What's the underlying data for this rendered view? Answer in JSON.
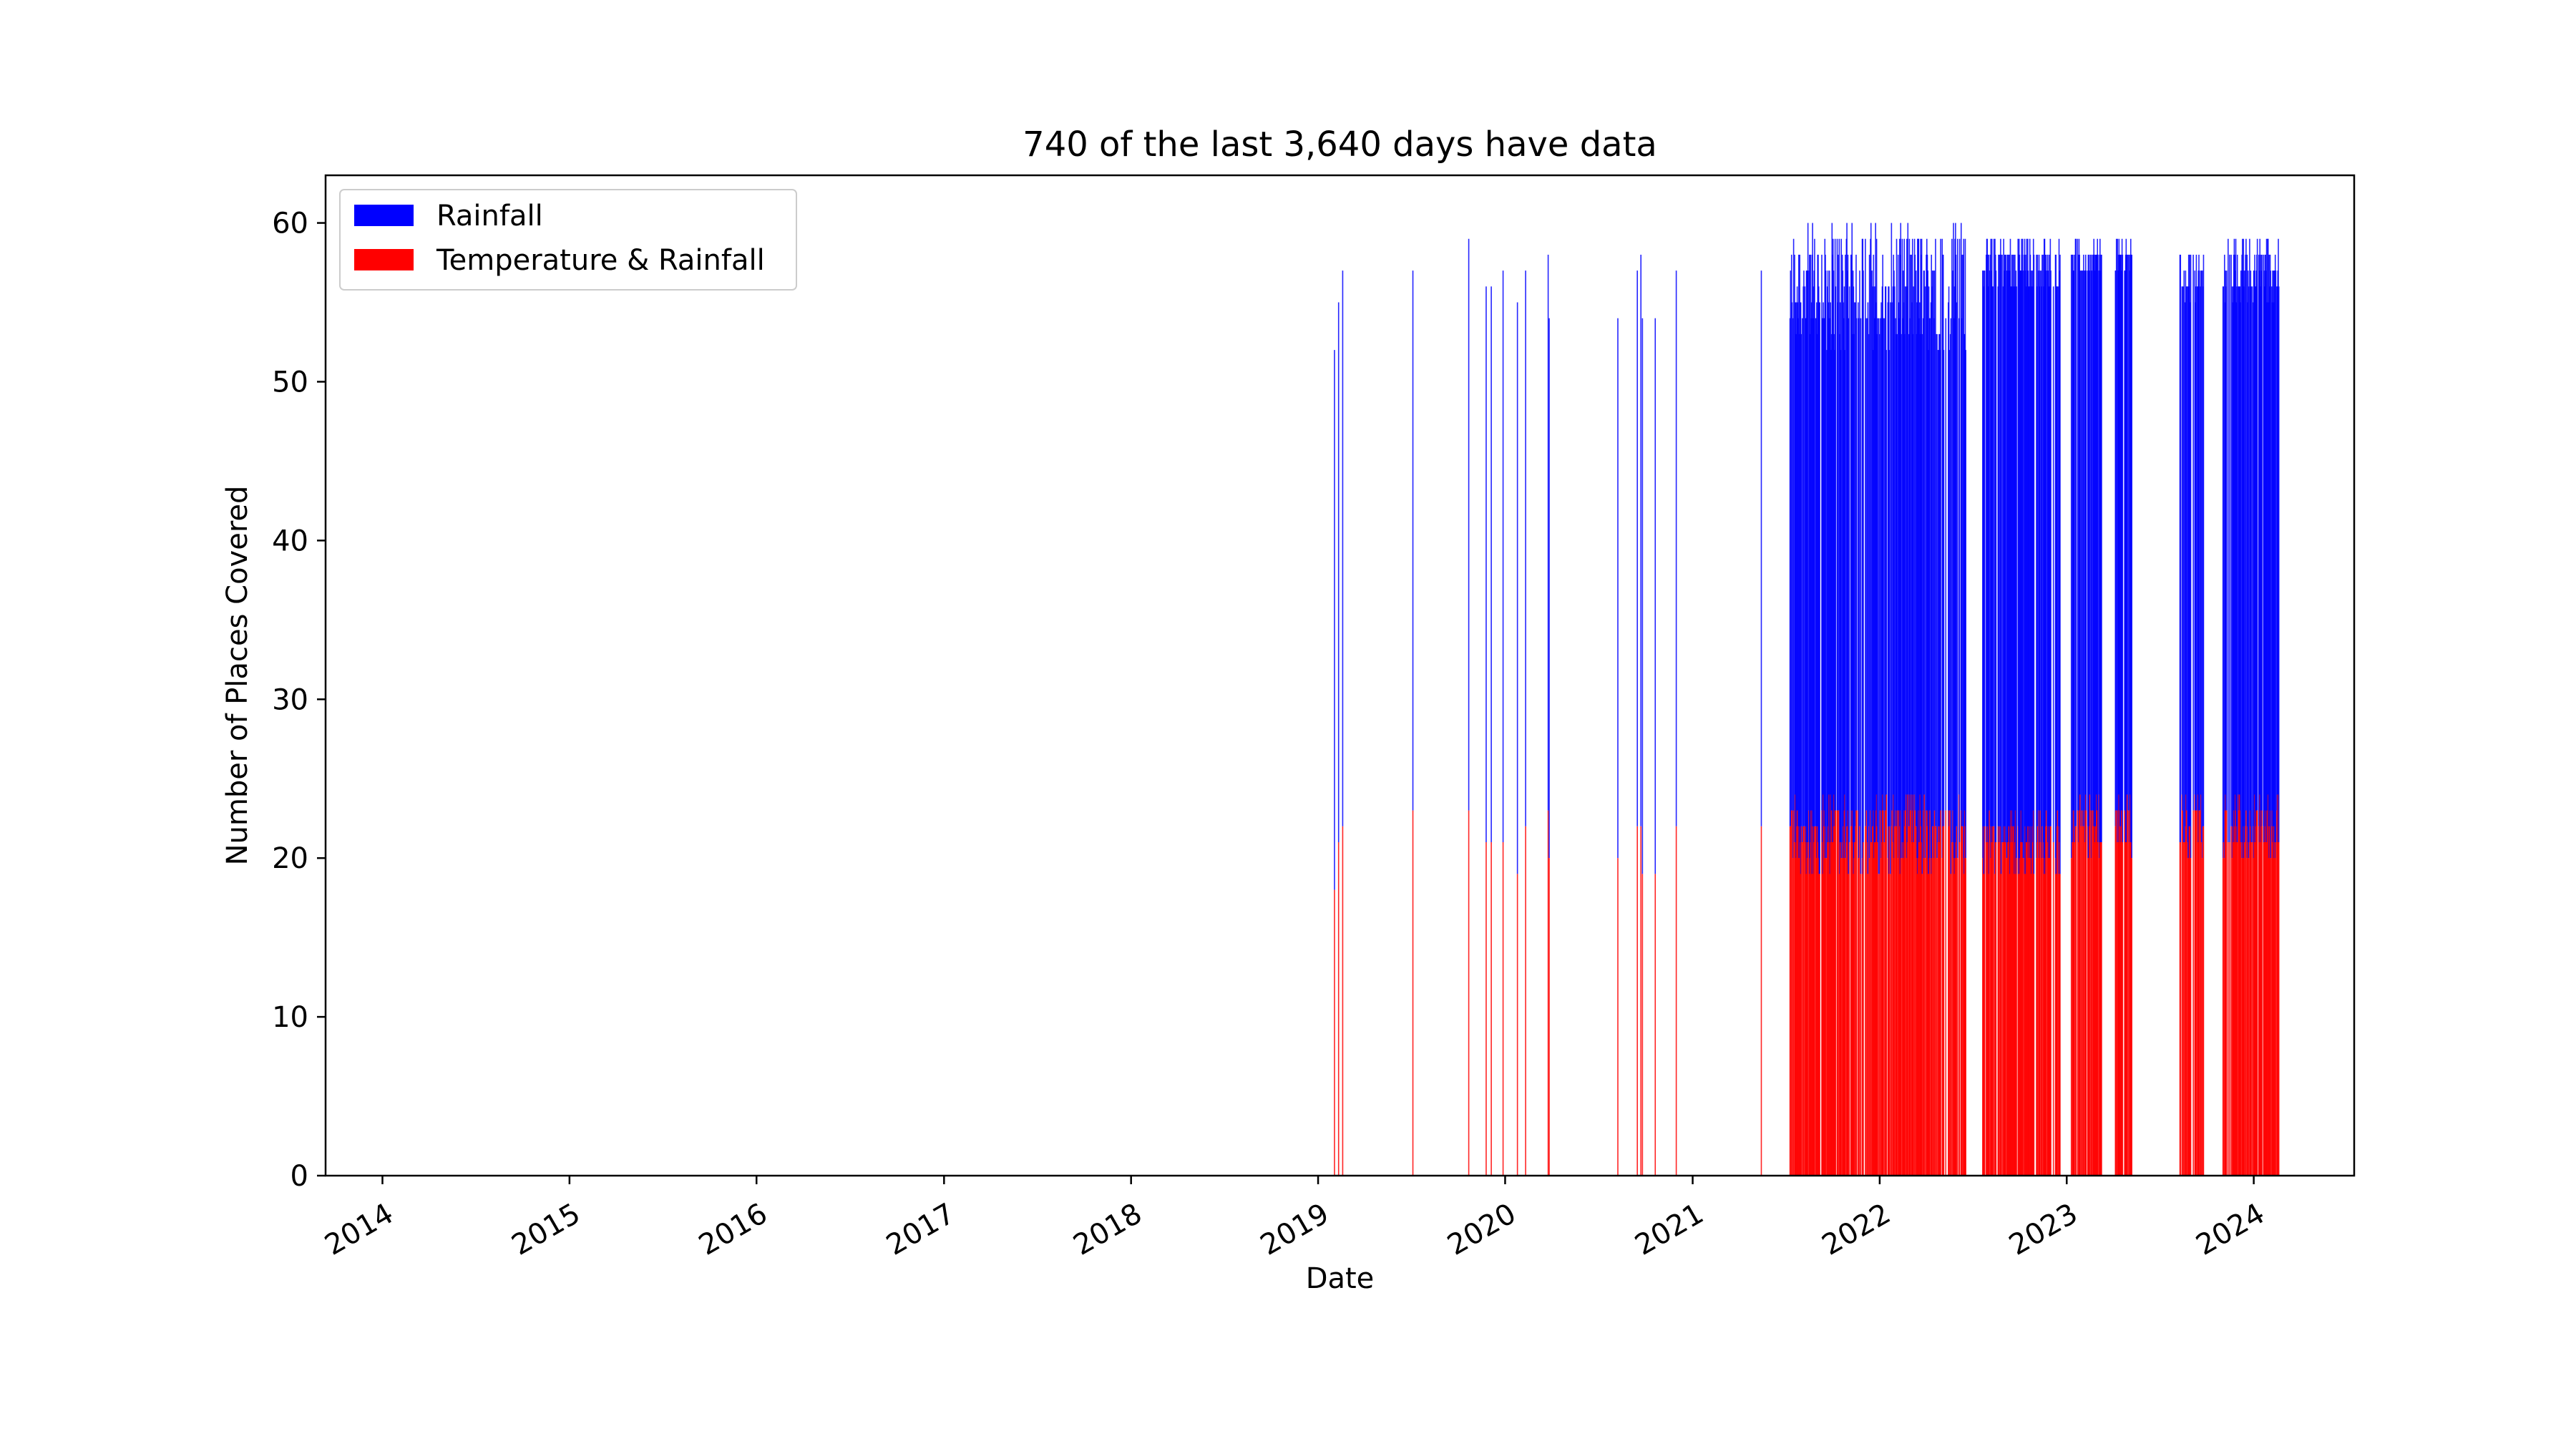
{
  "chart_data": {
    "type": "bar",
    "title": "740 of the last 3,640 days have data",
    "xlabel": "Date",
    "ylabel": "Number of Places Covered",
    "xlim": [
      "2013-09-12",
      "2024-07-15"
    ],
    "ylim": [
      0,
      63
    ],
    "x_ticks": [
      "2014",
      "2015",
      "2016",
      "2017",
      "2018",
      "2019",
      "2020",
      "2021",
      "2022",
      "2023",
      "2024"
    ],
    "y_ticks": [
      "0",
      "10",
      "20",
      "30",
      "40",
      "50",
      "60"
    ],
    "grid": false,
    "legend": {
      "location": "top-left",
      "entries": [
        "Rainfall",
        "Temperature & Rainfall"
      ]
    },
    "colors": {
      "rainfall": "#0000ff",
      "temperature_rainfall": "#ff0000"
    },
    "stacked": true,
    "series": [
      {
        "name": "Rainfall",
        "color": "#0000ff"
      },
      {
        "name": "Temperature & Rainfall",
        "color": "#ff0000"
      }
    ],
    "sparse_bars": [
      {
        "date": "2019-02-02",
        "total": 52,
        "temperature_rainfall": 18
      },
      {
        "date": "2019-02-10",
        "total": 55,
        "temperature_rainfall": 21
      },
      {
        "date": "2019-02-18",
        "total": 57,
        "temperature_rainfall": 22
      },
      {
        "date": "2019-07-05",
        "total": 57,
        "temperature_rainfall": 23
      },
      {
        "date": "2019-10-22",
        "total": 59,
        "temperature_rainfall": 23
      },
      {
        "date": "2019-11-25",
        "total": 56,
        "temperature_rainfall": 21
      },
      {
        "date": "2019-12-05",
        "total": 56,
        "temperature_rainfall": 21
      },
      {
        "date": "2019-12-28",
        "total": 57,
        "temperature_rainfall": 21
      },
      {
        "date": "2020-01-25",
        "total": 55,
        "temperature_rainfall": 19
      },
      {
        "date": "2020-02-10",
        "total": 57,
        "temperature_rainfall": 22
      },
      {
        "date": "2020-03-25",
        "total": 58,
        "temperature_rainfall": 23
      },
      {
        "date": "2020-03-27",
        "total": 54,
        "temperature_rainfall": 20
      },
      {
        "date": "2020-08-08",
        "total": 54,
        "temperature_rainfall": 20
      },
      {
        "date": "2020-09-15",
        "total": 57,
        "temperature_rainfall": 22
      },
      {
        "date": "2020-09-22",
        "total": 58,
        "temperature_rainfall": 22
      },
      {
        "date": "2020-09-25",
        "total": 54,
        "temperature_rainfall": 19
      },
      {
        "date": "2020-10-20",
        "total": 54,
        "temperature_rainfall": 19
      },
      {
        "date": "2020-11-30",
        "total": 57,
        "temperature_rainfall": 22
      },
      {
        "date": "2021-05-15",
        "total": 57,
        "temperature_rainfall": 22
      }
    ],
    "dense_periods": [
      {
        "start": "2021-07-10",
        "end": "2022-06-20",
        "total_range": [
          42,
          60
        ],
        "temperature_rainfall_range": [
          19,
          24
        ]
      },
      {
        "start": "2022-07-20",
        "end": "2022-12-20",
        "total_range": [
          52,
          59
        ],
        "temperature_rainfall_range": [
          19,
          23
        ]
      },
      {
        "start": "2023-01-10",
        "end": "2023-03-10",
        "total_range": [
          54,
          59
        ],
        "temperature_rainfall_range": [
          20,
          24
        ]
      },
      {
        "start": "2023-04-05",
        "end": "2023-05-10",
        "total_range": [
          54,
          59
        ],
        "temperature_rainfall_range": [
          20,
          24
        ]
      },
      {
        "start": "2023-08-10",
        "end": "2023-09-25",
        "total_range": [
          52,
          58
        ],
        "temperature_rainfall_range": [
          20,
          24
        ]
      },
      {
        "start": "2023-11-01",
        "end": "2024-02-20",
        "total_range": [
          50,
          59
        ],
        "temperature_rainfall_range": [
          20,
          24
        ]
      }
    ]
  }
}
